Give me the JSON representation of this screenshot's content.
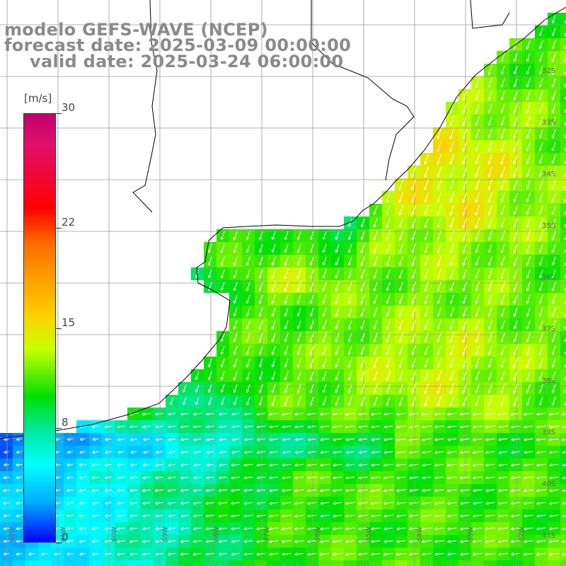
{
  "header": {
    "line1": "modelo GEFS-WAVE (NCEP)",
    "line2": "forecast date: 2025-03-09 00:00:00",
    "line3": "valid date: 2025-03-24 06:00:00"
  },
  "colorbar": {
    "unit": "[m/s]",
    "min": 0,
    "max": 30,
    "ticks": [
      {
        "value": 30,
        "label": "30"
      },
      {
        "value": 22,
        "label": "22"
      },
      {
        "value": 15,
        "label": "15"
      },
      {
        "value": 8,
        "label": "8"
      },
      {
        "value": 0,
        "label": "0"
      }
    ],
    "colors": [
      "#0000ff",
      "#00a8ff",
      "#00ffff",
      "#00e8a0",
      "#00e000",
      "#c8ff00",
      "#ffd000",
      "#ff6a00",
      "#ff0000",
      "#e0106a",
      "#c0006e"
    ]
  },
  "latitude_labels": [
    "32S",
    "33S",
    "34S",
    "35S",
    "36S",
    "37S",
    "38S",
    "39S",
    "40S",
    "41S"
  ],
  "longitude_labels": [
    "62W",
    "61W",
    "60W",
    "59W",
    "58W",
    "57W",
    "56W",
    "55W",
    "54W",
    "53W",
    "52W"
  ],
  "land_color": "#ffffff",
  "grid_color": "#9a9a9a",
  "coast_color": "#000000",
  "arrow_color": "#ffffff"
}
